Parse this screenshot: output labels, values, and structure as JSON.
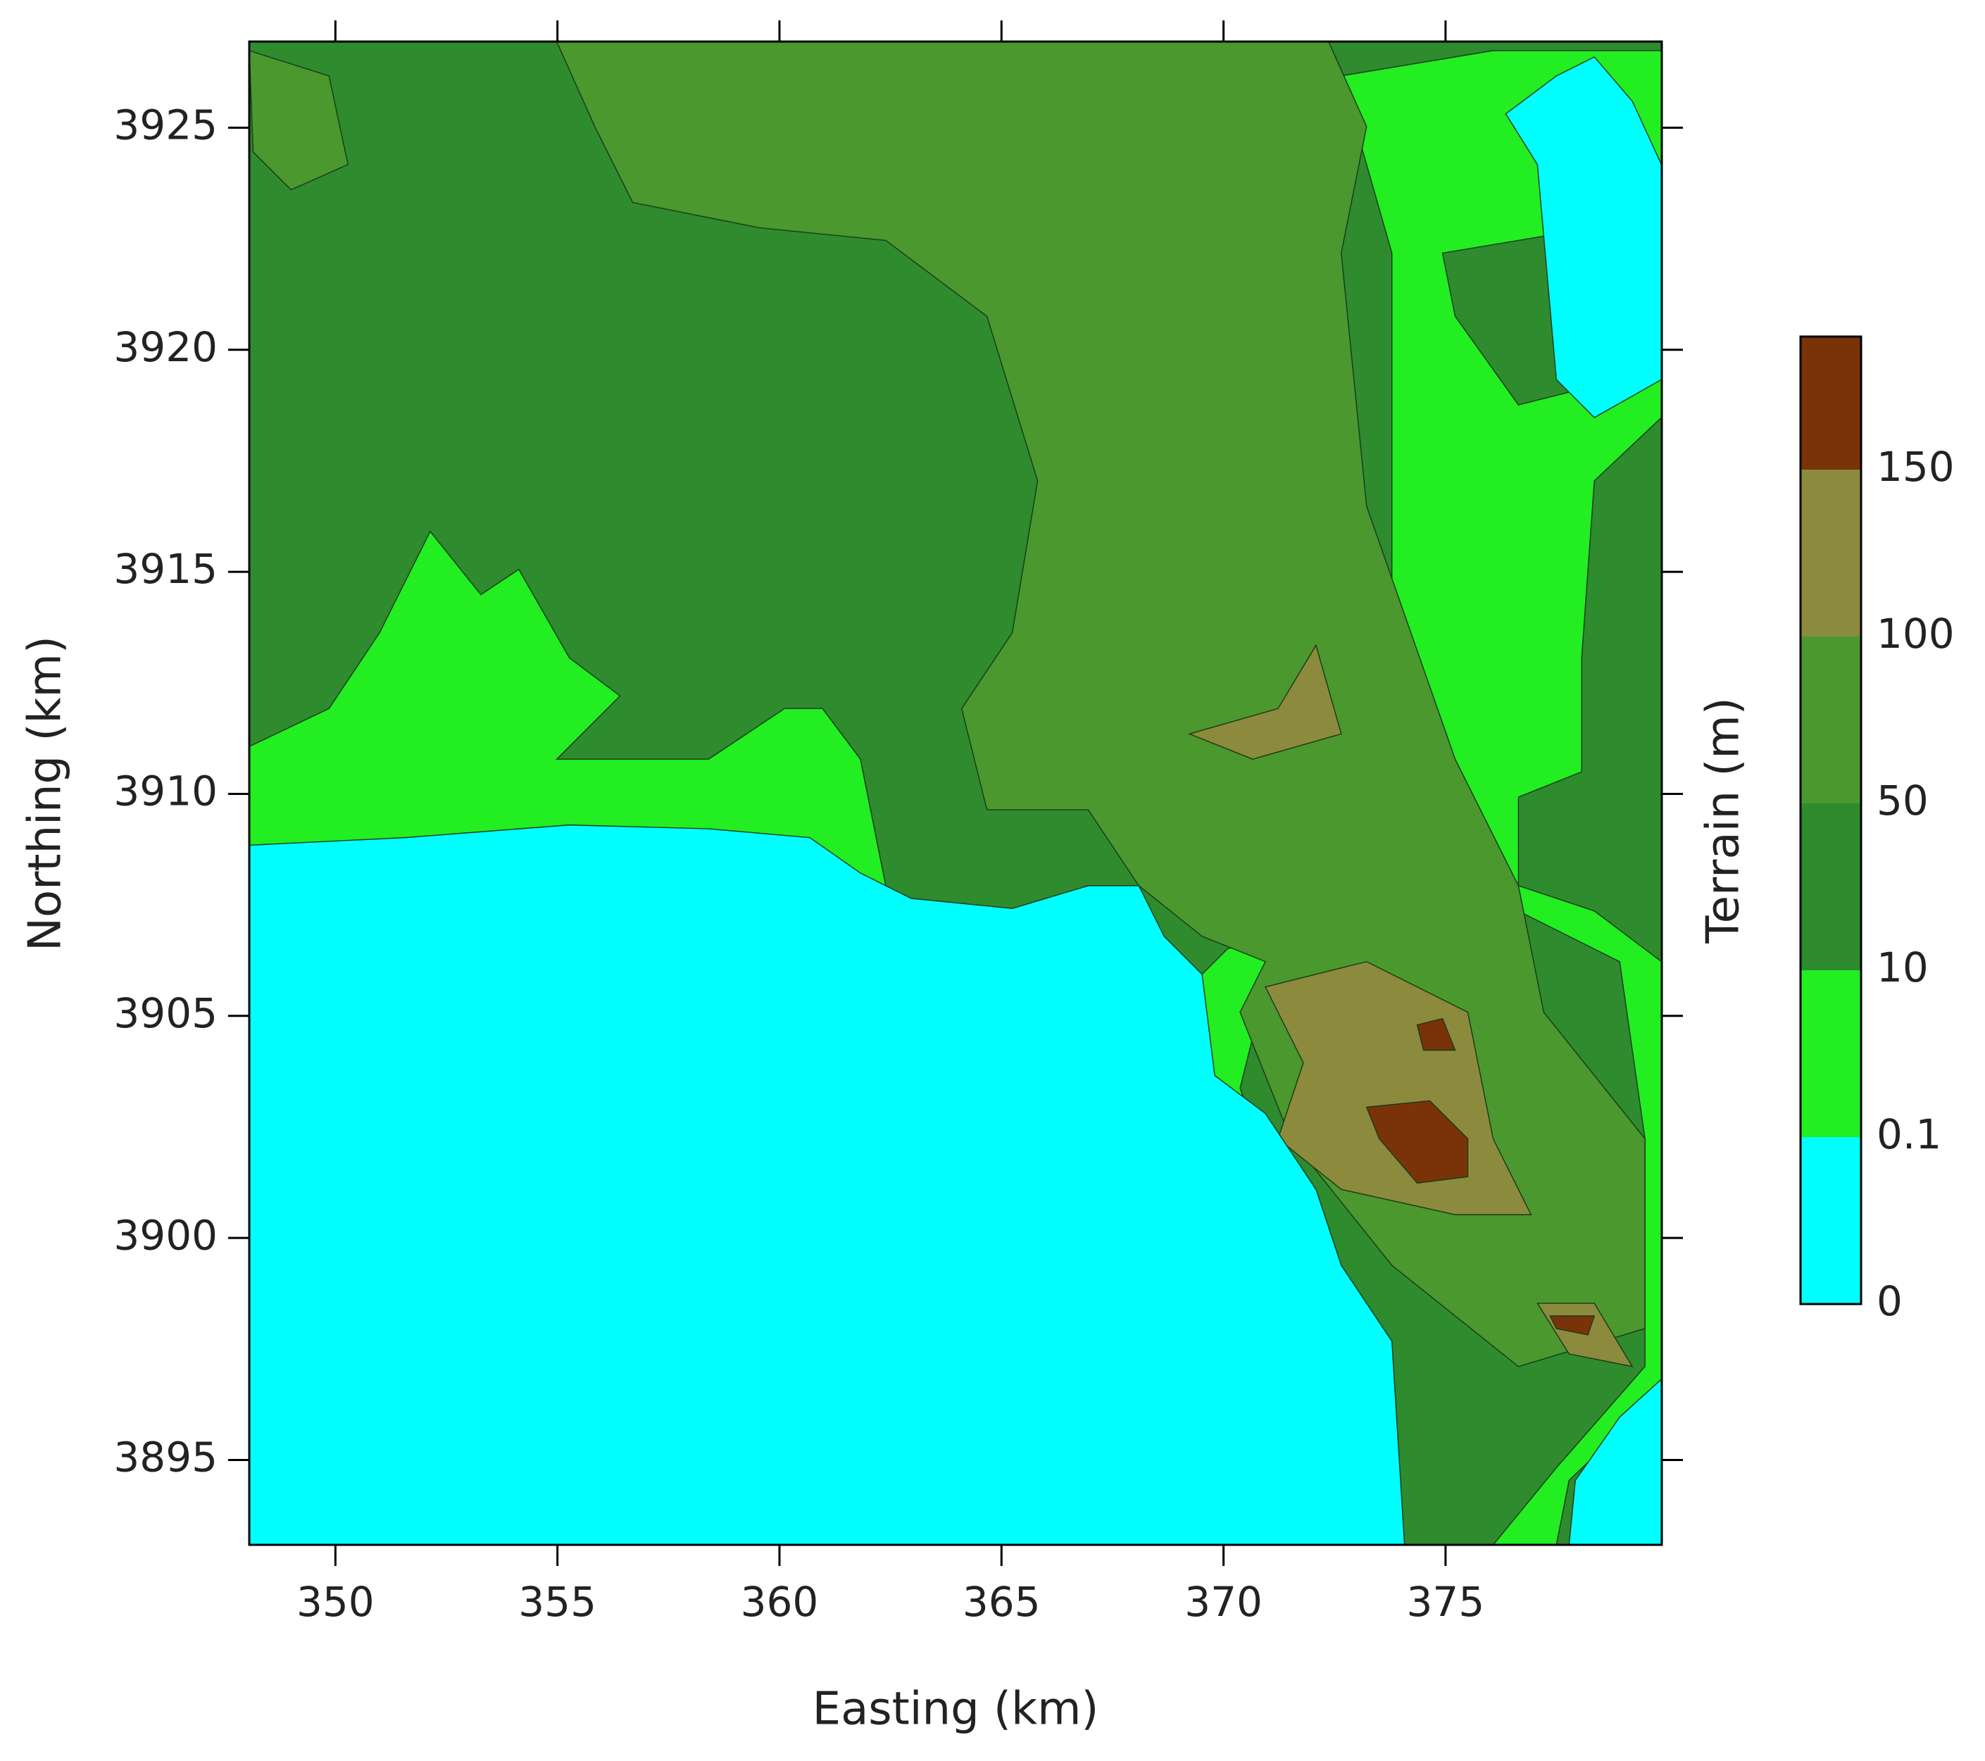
{
  "chart_data": {
    "type": "contour",
    "xlabel": "Easting (km)",
    "ylabel": "Northing (km)",
    "xlim": [
      348.06,
      379.87
    ],
    "xticks": [
      350,
      355,
      360,
      365,
      370,
      375
    ],
    "ylim": [
      3893.09,
      3926.94
    ],
    "yticks": [
      3895,
      3900,
      3905,
      3910,
      3915,
      3920,
      3925
    ],
    "colorbar": {
      "label": "Terrain (m)",
      "levels": [
        0,
        0.1,
        10,
        50,
        100,
        150
      ],
      "colors": [
        "#00ffff",
        "#22ee22",
        "#2e8b2e",
        "#4a982e",
        "#8c8a3c",
        "#7a3308"
      ]
    }
  }
}
